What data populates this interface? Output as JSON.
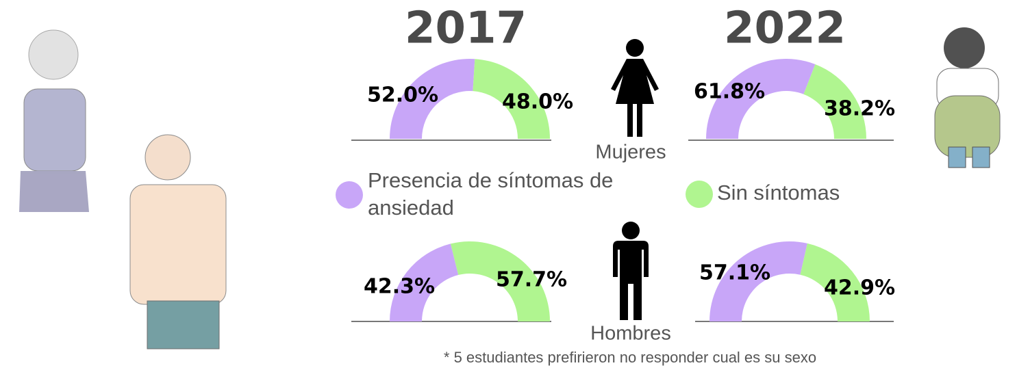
{
  "columns": [
    "2017",
    "2022"
  ],
  "rows": [
    "Mujeres",
    "Hombres"
  ],
  "legend": {
    "labels": [
      "Presencia de síntomas de ansiedad",
      "Sin síntomas"
    ],
    "colors": [
      "#c8a6f8",
      "#b0f590"
    ]
  },
  "note": "* 5 estudiantes prefirieron no responder cual es su sexo",
  "chart_data": [
    {
      "type": "pie",
      "values": [
        52.0,
        48.0
      ],
      "value_labels": [
        "52.0%",
        "48.0%"
      ],
      "colors": [
        "#c8a6f8",
        "#b0f590"
      ]
    },
    {
      "type": "pie",
      "values": [
        61.8,
        38.2
      ],
      "value_labels": [
        "61.8%",
        "38.2%"
      ],
      "colors": [
        "#c8a6f8",
        "#b0f590"
      ]
    },
    {
      "type": "pie",
      "values": [
        42.3,
        57.7
      ],
      "value_labels": [
        "42.3%",
        "57.7%"
      ],
      "colors": [
        "#c8a6f8",
        "#b0f590"
      ]
    },
    {
      "type": "pie",
      "values": [
        57.1,
        42.9
      ],
      "value_labels": [
        "57.1%",
        "42.9%"
      ],
      "colors": [
        "#c8a6f8",
        "#b0f590"
      ]
    }
  ]
}
